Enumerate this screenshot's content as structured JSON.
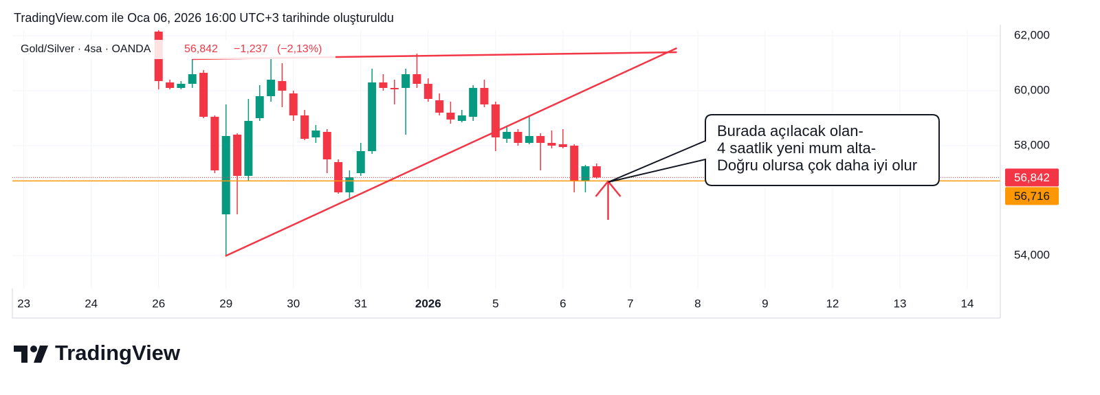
{
  "header": {
    "title": "TradingView.com ile Oca 06, 2026 16:00 UTC+3 tarihinde oluşturuldu"
  },
  "chart_data": {
    "type": "candlestick",
    "legend": {
      "symbol": "Gold/Silver · 4sa · OANDA",
      "values": [
        56.842,
        -1.237,
        -2.13
      ],
      "value_labels": [
        "56,842",
        "−1,237",
        "(−2,13%)"
      ],
      "color": "#f23645"
    },
    "up_color": "#089981",
    "down_color": "#f23645",
    "x": [
      2,
      2.167,
      2.333,
      2.5,
      2.667,
      2.833,
      3,
      3.167,
      3.333,
      3.5,
      3.667,
      3.833,
      4,
      4.167,
      4.333,
      4.5,
      4.667,
      4.833,
      5,
      5.167,
      5.333,
      5.5,
      5.667,
      5.833,
      6,
      6.167,
      6.333,
      6.5,
      6.667,
      6.833,
      7,
      7.167,
      7.333,
      7.5,
      7.667,
      7.833,
      8,
      8.167,
      8.333,
      8.5
    ],
    "open": [
      62.15,
      60.3,
      60.1,
      60.25,
      60.65,
      59.05,
      55.5,
      58.4,
      56.9,
      59.0,
      59.8,
      60.35,
      59.9,
      59.1,
      58.3,
      58.5,
      57.4,
      56.3,
      57.0,
      57.8,
      60.3,
      60.1,
      60.1,
      60.6,
      60.25,
      59.65,
      59.2,
      58.9,
      59.05,
      60.1,
      59.5,
      58.25,
      58.5,
      58.1,
      58.35,
      58.1,
      58.05,
      58.0,
      56.7,
      57.25
    ],
    "high": [
      62.2,
      60.4,
      60.35,
      61.15,
      60.75,
      59.1,
      59.5,
      58.45,
      59.7,
      60.2,
      61.2,
      61.0,
      60.0,
      59.3,
      58.75,
      58.6,
      57.5,
      57.1,
      58.1,
      60.8,
      60.6,
      60.4,
      60.8,
      61.35,
      60.45,
      59.9,
      59.6,
      59.3,
      60.2,
      60.4,
      59.6,
      58.7,
      58.6,
      59.05,
      58.45,
      58.55,
      58.6,
      58.05,
      57.3,
      57.35
    ],
    "low": [
      60.05,
      60.05,
      60.05,
      60.1,
      59.0,
      57.0,
      54.0,
      55.5,
      56.7,
      58.9,
      59.6,
      59.4,
      58.9,
      58.2,
      58.1,
      57.0,
      56.25,
      56.1,
      56.9,
      57.7,
      60.0,
      59.5,
      58.4,
      60.1,
      59.6,
      59.1,
      58.8,
      58.85,
      58.9,
      59.4,
      57.8,
      58.1,
      58.0,
      58.05,
      57.1,
      57.9,
      57.9,
      56.3,
      56.3,
      56.8
    ],
    "close": [
      60.35,
      60.1,
      60.25,
      60.6,
      59.05,
      57.1,
      58.35,
      56.9,
      58.9,
      59.8,
      60.4,
      60.0,
      59.1,
      58.25,
      58.55,
      57.5,
      56.3,
      56.85,
      57.8,
      60.3,
      60.1,
      60.05,
      60.6,
      60.25,
      59.7,
      59.2,
      58.95,
      59.1,
      60.1,
      59.5,
      58.3,
      58.5,
      58.1,
      58.35,
      58.1,
      58.0,
      57.95,
      56.7,
      57.25,
      56.842
    ],
    "xlim": [
      -0.17,
      14.49
    ],
    "xticks": [
      {
        "value": 0,
        "label": "23"
      },
      {
        "value": 1,
        "label": "24"
      },
      {
        "value": 2,
        "label": "26"
      },
      {
        "value": 3,
        "label": "29"
      },
      {
        "value": 4,
        "label": "30"
      },
      {
        "value": 5,
        "label": "31"
      },
      {
        "value": 6,
        "label": "2026"
      },
      {
        "value": 7,
        "label": "5"
      },
      {
        "value": 8,
        "label": "6"
      },
      {
        "value": 9,
        "label": "7"
      },
      {
        "value": 10,
        "label": "8"
      },
      {
        "value": 11,
        "label": "9"
      },
      {
        "value": 12,
        "label": "12"
      },
      {
        "value": 13,
        "label": "13"
      },
      {
        "value": 14,
        "label": "14"
      }
    ],
    "ylim": [
      52.8,
      62.2
    ],
    "yticks": [
      {
        "value": 62,
        "label": "62,000"
      },
      {
        "value": 60,
        "label": "60,000"
      },
      {
        "value": 58,
        "label": "58,000"
      },
      {
        "value": 54,
        "label": "54,000"
      }
    ],
    "grid": true,
    "price_lines": [
      {
        "value": 56.842,
        "label": "56,842",
        "color": "#f23645",
        "text_color": "#ffffff",
        "style": "dotted"
      },
      {
        "value": 56.716,
        "label": "56,716",
        "color": "#ff9800",
        "text_color": "#131722",
        "style": "solid"
      }
    ],
    "drawings": [
      {
        "points": [
          [
            2.5,
            61.15
          ],
          [
            9.69,
            61.4
          ]
        ]
      },
      {
        "points": [
          [
            2.99,
            53.98
          ],
          [
            9.69,
            61.55
          ]
        ]
      },
      {
        "points": [
          [
            8.67,
            55.3
          ],
          [
            8.67,
            56.7
          ]
        ],
        "arrow": true
      }
    ],
    "drawing_color": "#f23645",
    "callout": {
      "lines": [
        "Burada açılacak olan-",
        "4 saatlik yeni mum alta-",
        "Doğru olursa çok daha iyi olur"
      ]
    },
    "brand": "TradingView"
  }
}
